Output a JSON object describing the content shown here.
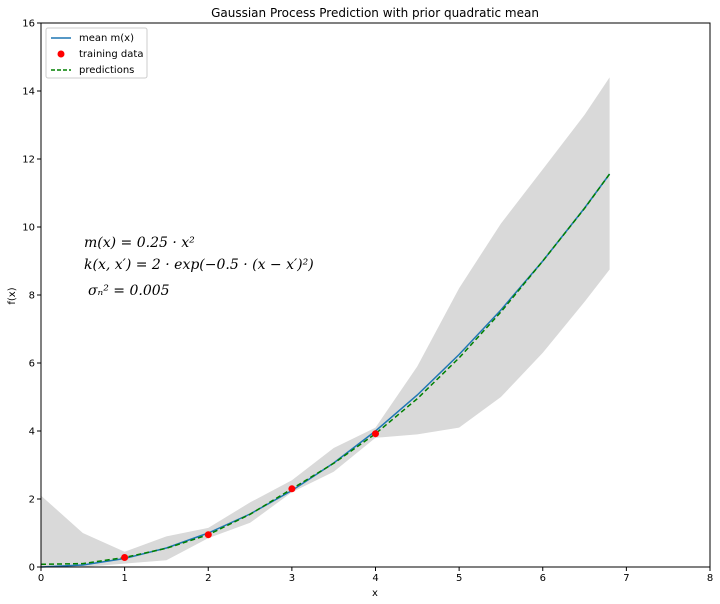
{
  "chart_data": {
    "type": "line",
    "title": "Gaussian Process Prediction with prior quadratic mean",
    "xlabel": "x",
    "ylabel": "f(x)",
    "xlim": [
      0,
      8
    ],
    "ylim": [
      0,
      16
    ],
    "grid": false,
    "legend_placement": "top-left",
    "xticks": [
      "0",
      "1",
      "2",
      "3",
      "4",
      "5",
      "6",
      "7",
      "8"
    ],
    "yticks": [
      "0",
      "2",
      "4",
      "6",
      "8",
      "10",
      "12",
      "14",
      "16"
    ],
    "x": [
      0,
      0.5,
      1,
      1.5,
      2,
      2.5,
      3,
      3.5,
      4,
      4.5,
      5,
      5.5,
      6,
      6.5,
      6.8
    ],
    "series": [
      {
        "name": "mean $m(x)$",
        "display_name": "mean m(x)",
        "style": "line",
        "color": "#1f77b4",
        "values": [
          0.0,
          0.06,
          0.25,
          0.56,
          1.0,
          1.56,
          2.25,
          3.06,
          4.0,
          5.06,
          6.25,
          7.56,
          9.0,
          10.56,
          11.56
        ]
      },
      {
        "name": "training data",
        "style": "points",
        "color": "#ff0000",
        "x": [
          1,
          2,
          3,
          4
        ],
        "values": [
          0.28,
          0.95,
          2.3,
          3.92
        ]
      },
      {
        "name": "predictions",
        "style": "dashed",
        "color": "#008000",
        "values": [
          0.08,
          0.1,
          0.28,
          0.55,
          0.95,
          1.55,
          2.3,
          3.05,
          3.92,
          4.95,
          6.15,
          7.5,
          9.0,
          10.55,
          11.56
        ]
      }
    ],
    "confidence_band": {
      "color": "#d9d9d9",
      "x": [
        0,
        0.5,
        1,
        1.5,
        2,
        2.5,
        3,
        3.5,
        4,
        4.5,
        5,
        5.5,
        6,
        6.5,
        6.8
      ],
      "lower": [
        0.0,
        0.0,
        0.1,
        0.2,
        0.85,
        1.3,
        2.2,
        2.8,
        3.8,
        3.9,
        4.1,
        5.0,
        6.3,
        7.8,
        8.75
      ],
      "upper": [
        2.1,
        1.0,
        0.45,
        0.9,
        1.15,
        1.9,
        2.55,
        3.5,
        4.1,
        5.9,
        8.2,
        10.1,
        11.7,
        13.3,
        14.4
      ]
    },
    "annotations": [
      "m(x) = 0.25 · x²",
      "k(x, x′) = 2 · exp(−0.5 · (x − x′)²)",
      "σₙ² = 0.005"
    ]
  }
}
